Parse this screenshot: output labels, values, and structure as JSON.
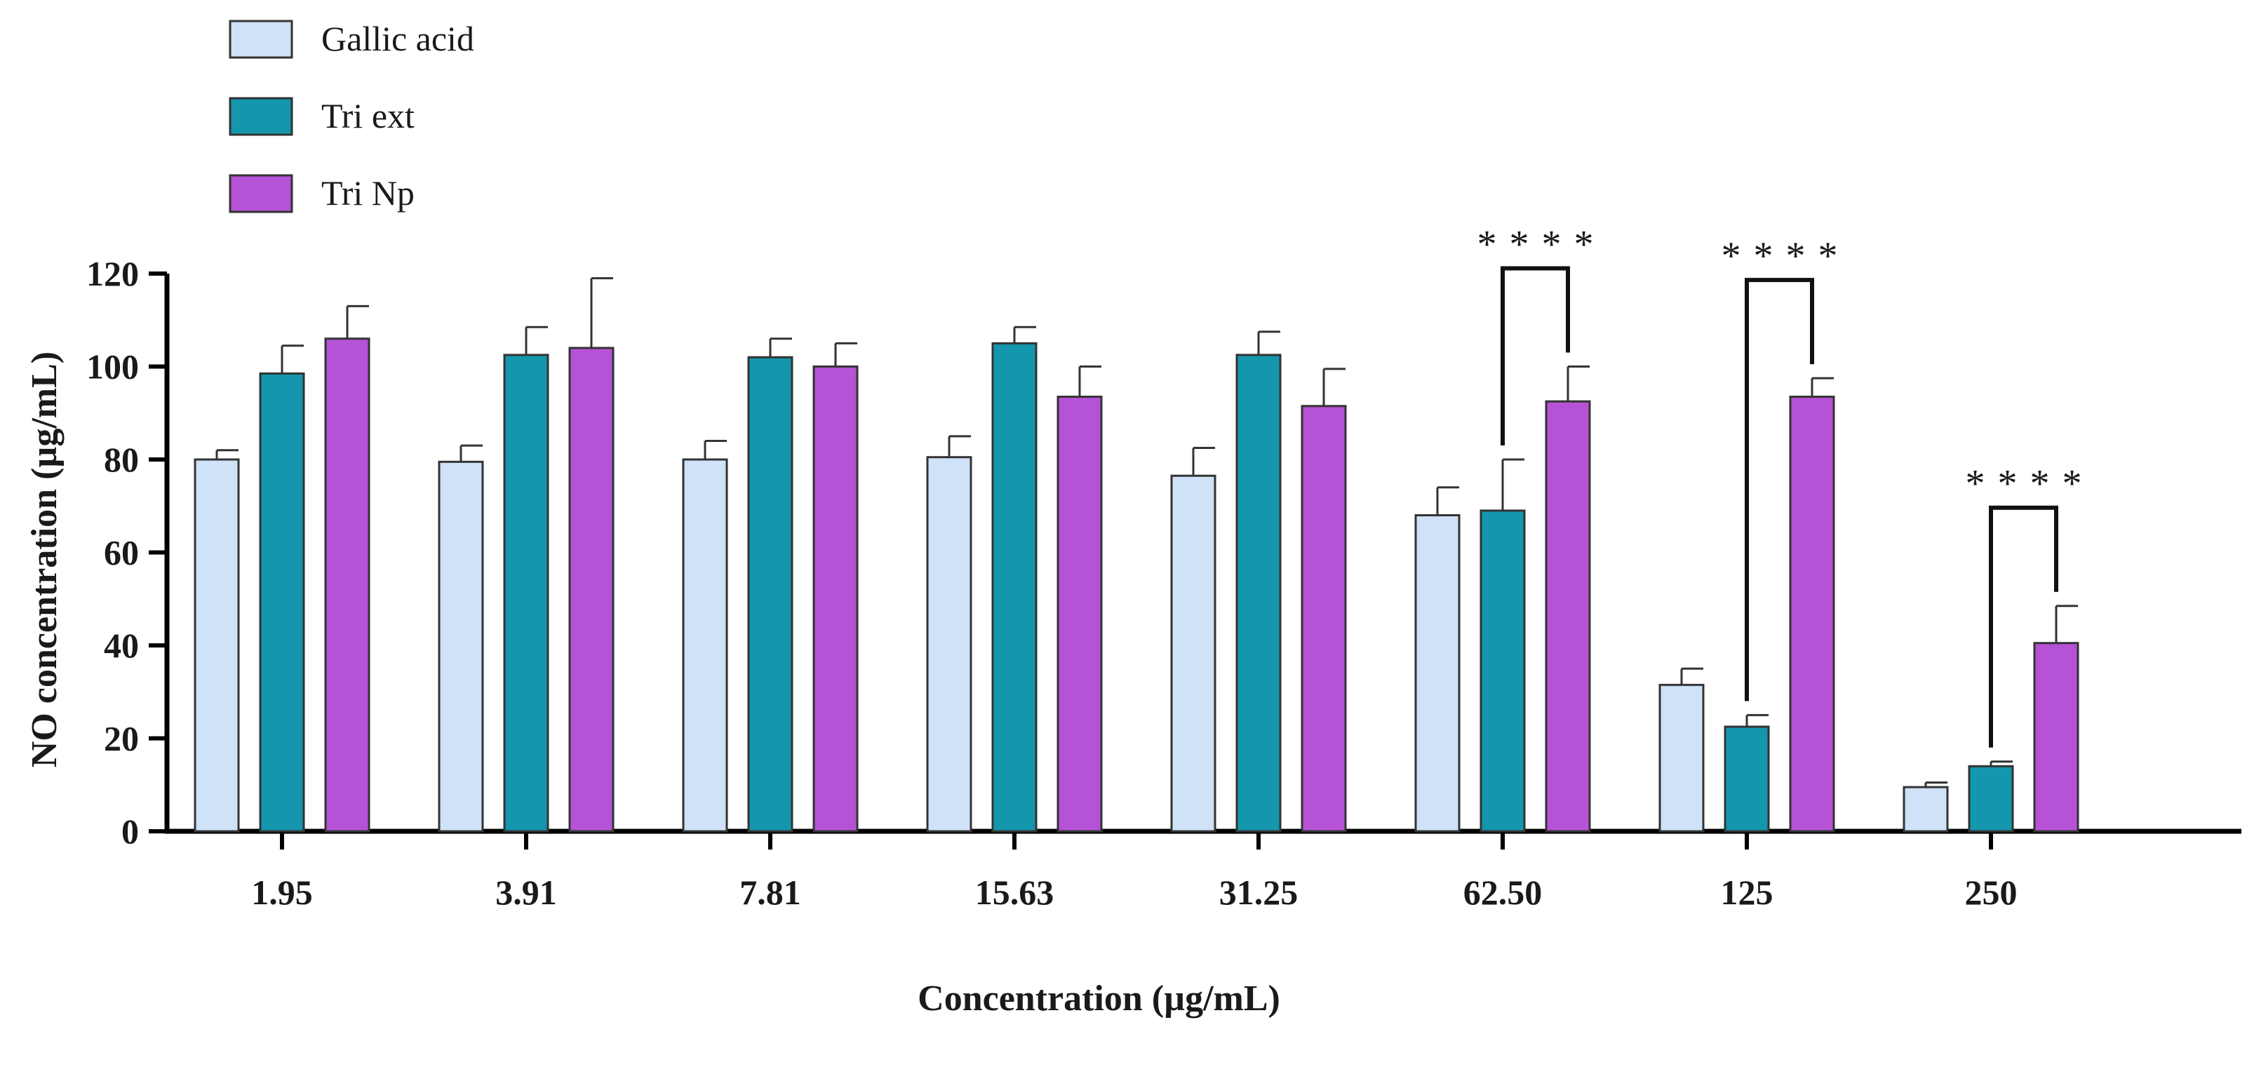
{
  "chart_data": {
    "type": "bar",
    "title": "",
    "xlabel": "Concentration (µg/mL)",
    "ylabel": "NO concentration (µg/mL)",
    "ylim": [
      0,
      120
    ],
    "yticks": [
      0,
      20,
      40,
      60,
      80,
      100,
      120
    ],
    "categories": [
      "1.95",
      "3.91",
      "7.81",
      "15.63",
      "31.25",
      "62.50",
      "125",
      "250"
    ],
    "series": [
      {
        "name": "Gallic acid",
        "color": "#cfe2f7",
        "values": [
          80,
          79.5,
          80,
          80.5,
          76.5,
          68,
          31.5,
          9.5
        ],
        "errors": [
          2,
          3.5,
          4,
          4.5,
          6,
          6,
          3.5,
          1
        ]
      },
      {
        "name": "Tri ext",
        "color": "#1496ad",
        "values": [
          98.5,
          102.5,
          102,
          105,
          102.5,
          69,
          22.5,
          14
        ],
        "errors": [
          6,
          6,
          4,
          3.5,
          5,
          11,
          2.5,
          1
        ]
      },
      {
        "name": "Tri Np",
        "color": "#b552d6",
        "values": [
          106,
          104,
          100,
          93.5,
          91.5,
          92.5,
          93.5,
          40.5
        ],
        "errors": [
          7,
          15,
          5,
          6.5,
          8,
          7.5,
          4,
          8
        ]
      }
    ],
    "legend_position": "top-left",
    "significance": [
      {
        "category": "62.50",
        "from_series": "Tri ext",
        "to_series": "Tri Np",
        "label": "****"
      },
      {
        "category": "125",
        "from_series": "Tri ext",
        "to_series": "Tri Np",
        "label": "****"
      },
      {
        "category": "250",
        "from_series": "Tri ext",
        "to_series": "Tri Np",
        "label": "****"
      }
    ]
  }
}
